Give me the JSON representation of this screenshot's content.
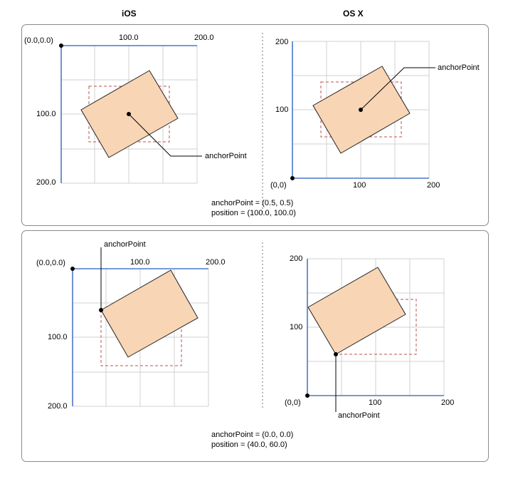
{
  "headers": {
    "ios": "iOS",
    "osx": "OS X"
  },
  "panel1": {
    "ios": {
      "origin": "(0.0,0.0)",
      "x_mid": "100.0",
      "x_max": "200.0",
      "y_mid": "100.0",
      "y_max": "200.0",
      "anchor_label": "anchorPoint"
    },
    "osx": {
      "origin": "(0,0)",
      "x_mid": "100",
      "x_max": "200",
      "y_mid": "100",
      "y_max": "200",
      "anchor_label": "anchorPoint"
    },
    "caption_anchor": "anchorPoint = (0.5, 0.5)",
    "caption_position": "position = (100.0, 100.0)"
  },
  "panel2": {
    "ios": {
      "origin": "(0.0,0.0)",
      "x_mid": "100.0",
      "x_max": "200.0",
      "y_mid": "100.0",
      "y_max": "200.0",
      "anchor_label": "anchorPoint"
    },
    "osx": {
      "origin": "(0,0)",
      "x_mid": "100",
      "x_max": "200",
      "y_mid": "100",
      "y_max": "200",
      "anchor_label": "anchorPoint"
    },
    "caption_anchor": "anchorPoint = (0.0, 0.0)",
    "caption_position": "position = (40.0, 60.0)"
  },
  "colors": {
    "axis": "#4a78c8",
    "grid": "#d0d0d0",
    "layer_fill": "#f8d5b5",
    "layer_stroke": "#222222",
    "bounds_dashed": "#c0504d",
    "divider": "#bbbbbb"
  }
}
